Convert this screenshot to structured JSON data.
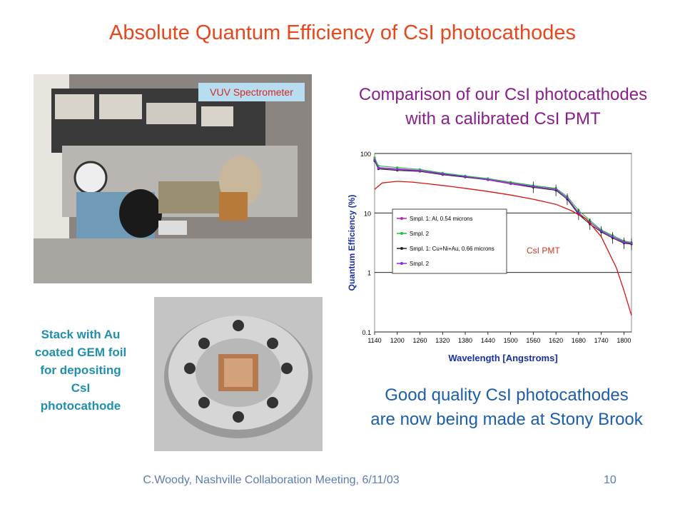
{
  "title": "Absolute Quantum Efficiency of CsI photocathodes",
  "photo_label": "VUV Spectrometer",
  "comparison_text": [
    "Comparison of our CsI photocathodes",
    "with a calibrated CsI PMT"
  ],
  "stack_caption": [
    "Stack with Au",
    "coated GEM foil",
    "for depositing",
    "CsI",
    "photocathode"
  ],
  "good_quality_text": [
    "Good quality CsI photocathodes",
    "are now being made at Stony Brook"
  ],
  "footer": "C.Woody, Nashville Collaboration Meeting, 6/11/03",
  "page_number": "10",
  "chart_data": {
    "type": "line",
    "xlabel": "Wavelength [Angstroms]",
    "ylabel": "Quantum Efficiency (%)",
    "y_scale": "log",
    "ylim": [
      0.1,
      100
    ],
    "xlim": [
      1140,
      1820
    ],
    "x_ticks": [
      "1140",
      "1200",
      "1260",
      "1320",
      "1380",
      "1440",
      "1500",
      "1560",
      "1620",
      "1680",
      "1740",
      "1800"
    ],
    "y_ticks": [
      "0.1",
      "1",
      "10",
      "100"
    ],
    "grid": "horizontal",
    "legend_position": "center-left",
    "annotation": "CsI PMT",
    "series": [
      {
        "name": "Smpl. 1: Al, 0.54 microns",
        "color": "#c020c0",
        "x": [
          1140,
          1150,
          1200,
          1260,
          1320,
          1380,
          1440,
          1500,
          1560,
          1620,
          1650,
          1680,
          1710,
          1740,
          1770,
          1800,
          1820
        ],
        "y": [
          80,
          58,
          55,
          52,
          46,
          41,
          37,
          32,
          28,
          25,
          18,
          10,
          7,
          5,
          4,
          3.3,
          3.1
        ]
      },
      {
        "name": "Smpl. 2",
        "color": "#20c040",
        "x": [
          1140,
          1150,
          1200,
          1260,
          1320,
          1380,
          1440,
          1500,
          1560,
          1620,
          1650,
          1680,
          1710,
          1740,
          1770,
          1800,
          1820
        ],
        "y": [
          85,
          62,
          58,
          54,
          47,
          42,
          38,
          33,
          29,
          26,
          19,
          11,
          7.5,
          5.2,
          4.2,
          3.4,
          3.2
        ]
      },
      {
        "name": "Smpl. 1: Cu+Ni+Au, 0.66 microns",
        "color": "#222222",
        "x": [
          1140,
          1150,
          1200,
          1260,
          1320,
          1380,
          1440,
          1500,
          1560,
          1620,
          1650,
          1680,
          1710,
          1740,
          1770,
          1800,
          1820
        ],
        "y": [
          75,
          55,
          52,
          50,
          44,
          40,
          36,
          31,
          27,
          24,
          17,
          9.5,
          6.5,
          4.8,
          3.8,
          3.1,
          3.0
        ]
      },
      {
        "name": "Smpl. 2",
        "color": "#8a2be2",
        "x": [
          1140,
          1150,
          1200,
          1260,
          1320,
          1380,
          1440,
          1500,
          1560,
          1620,
          1650,
          1680,
          1710,
          1740,
          1770,
          1800,
          1820
        ],
        "y": [
          78,
          57,
          54,
          51,
          45,
          41,
          36,
          31,
          28,
          25,
          18,
          10,
          7,
          5,
          4,
          3.2,
          3.1
        ]
      },
      {
        "color": "#dd1010",
        "x": [
          1140,
          1160,
          1200,
          1240,
          1280,
          1320,
          1380,
          1440,
          1500,
          1560,
          1620,
          1660,
          1700,
          1740,
          1780,
          1800,
          1820
        ],
        "y": [
          25,
          32,
          34,
          33,
          31,
          29,
          26,
          23,
          20,
          17,
          14,
          11,
          8,
          4,
          1.2,
          0.5,
          0.19
        ]
      }
    ]
  }
}
